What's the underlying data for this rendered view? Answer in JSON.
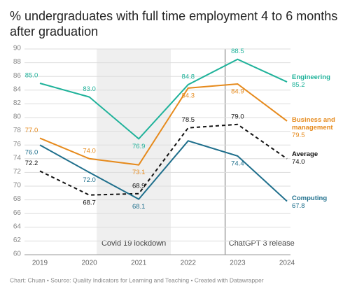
{
  "chart_data": {
    "type": "line",
    "title": "% undergraduates with full time employment 4 to 6 months after graduation",
    "footer": "Chart: Chuan • Source: Quality Indicators for Learning and Teaching • Created with Datawrapper",
    "x": [
      2019,
      2020,
      2021,
      2022,
      2023,
      2024
    ],
    "xlim": [
      2019,
      2024
    ],
    "xticks": [
      2019,
      2020,
      2021,
      2022,
      2023,
      2024
    ],
    "ylim": [
      60,
      90
    ],
    "yticks": [
      60,
      62,
      64,
      66,
      68,
      70,
      72,
      74,
      76,
      78,
      80,
      82,
      84,
      86,
      88,
      90
    ],
    "grid": true,
    "series": [
      {
        "name": "Engineering",
        "color": "#1fb29a",
        "values": [
          85.0,
          83.0,
          76.9,
          84.8,
          88.5,
          85.2
        ],
        "value_labels": [
          "85.0",
          "83.0",
          "76.9",
          "84.8",
          "88.5",
          "85.2"
        ]
      },
      {
        "name": "Business and management",
        "color": "#e68a1c",
        "values": [
          77.0,
          74.0,
          73.1,
          84.3,
          84.9,
          79.5
        ],
        "value_labels": [
          "77.0",
          "74.0",
          "73.1",
          "84.3",
          "84.9",
          "79.5"
        ]
      },
      {
        "name": "Average",
        "color": "#111111",
        "dashed": true,
        "values": [
          72.2,
          68.7,
          68.9,
          78.5,
          79.0,
          74.0
        ],
        "value_labels": [
          "72.2",
          "68.7",
          "68.9",
          "78.5",
          "79.0",
          "74.0"
        ]
      },
      {
        "name": "Computing",
        "color": "#1f6f8c",
        "values": [
          76.0,
          72.0,
          68.1,
          76.6,
          74.4,
          67.8
        ],
        "value_labels": [
          "76.0",
          "72.0",
          "68.1",
          null,
          "74.4",
          "67.8"
        ]
      }
    ],
    "annotations": [
      {
        "label": "Covid 19 lockdown",
        "xrange": [
          2020.15,
          2021.65
        ]
      },
      {
        "label": "ChatGPT 3 release",
        "x": 2022.75
      }
    ]
  }
}
